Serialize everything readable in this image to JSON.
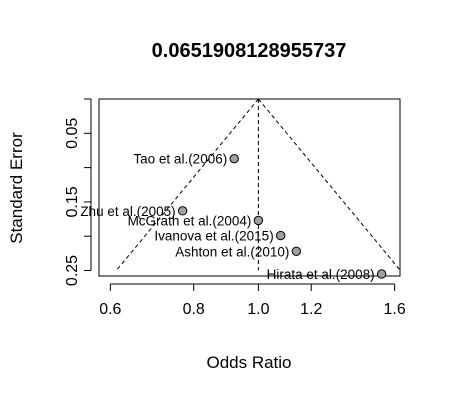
{
  "chart_data": {
    "type": "scatter",
    "subtype": "funnel-plot",
    "title": "0.0651908128955737",
    "xlabel": "Odds Ratio",
    "ylabel": "Standard Error",
    "x_scale": "log",
    "xlim": [
      0.577,
      1.63
    ],
    "ylim": [
      0.258,
      0.0
    ],
    "y_reversed": true,
    "x_ticks": [
      "0.6",
      "0.8",
      "1.0",
      "1.2",
      "1.6"
    ],
    "x_tick_values": [
      0.6,
      0.8,
      1.0,
      1.2,
      1.6
    ],
    "y_ticks": [
      "0.05",
      "0.15",
      "0.25"
    ],
    "y_tick_values": [
      0.05,
      0.15,
      0.25
    ],
    "grid": false,
    "legend": "none",
    "funnel": {
      "center_or": 1.0,
      "max_se": 0.25,
      "line_style": "dashed"
    },
    "point_fill": "#a0a0a0",
    "points": [
      {
        "label": "Tao et al.(2006)",
        "or": 0.92,
        "se": 0.087
      },
      {
        "label": "Zhu et al.(2005)",
        "or": 0.77,
        "se": 0.163
      },
      {
        "label": "McGrath et al.(2004)",
        "or": 1.0,
        "se": 0.177
      },
      {
        "label": "Ivanova et al.(2015)",
        "or": 1.08,
        "se": 0.199
      },
      {
        "label": "Ashton et al.(2010)",
        "or": 1.14,
        "se": 0.222
      },
      {
        "label": "Hirata et al.(2008)",
        "or": 1.53,
        "se": 0.255
      }
    ]
  }
}
